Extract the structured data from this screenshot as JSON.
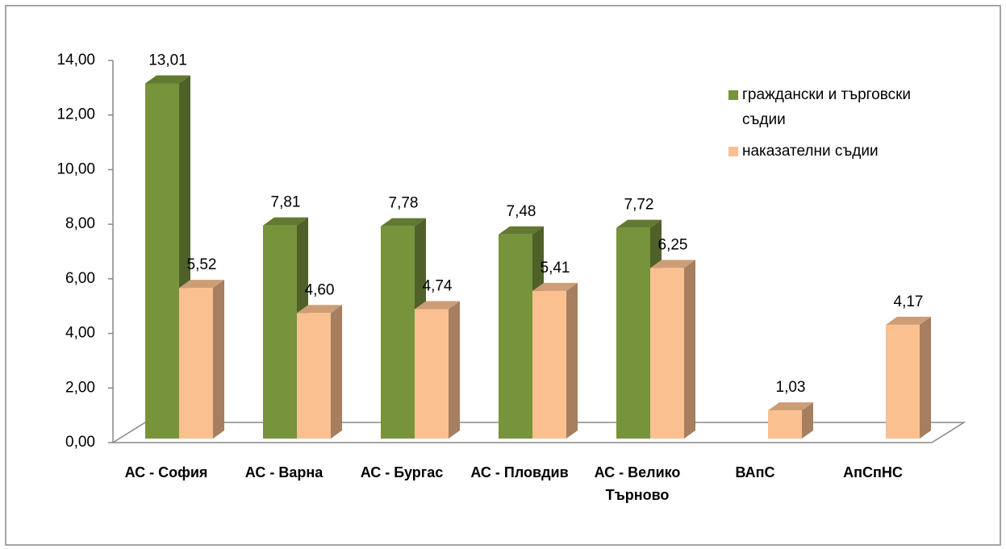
{
  "chart_data": {
    "type": "bar3d",
    "categories": [
      "АС - София",
      "АС - Варна",
      "АС - Бургас",
      "АС - Пловдив",
      "АС - Велико Търново",
      "ВАпС",
      "АпСпНС"
    ],
    "series": [
      {
        "name": "граждански и търговски съдии",
        "color": "#77933c",
        "values": [
          13.01,
          7.81,
          7.78,
          7.48,
          7.72,
          null,
          null
        ],
        "value_labels": [
          "13,01",
          "7,81",
          "7,78",
          "7,48",
          "7,72",
          null,
          null
        ]
      },
      {
        "name": "наказателни съдии",
        "color": "#fac090",
        "values": [
          5.52,
          4.6,
          4.74,
          5.41,
          6.25,
          1.03,
          4.17
        ],
        "value_labels": [
          "5,52",
          "4,60",
          "4,74",
          "5,41",
          "6,25",
          "1,03",
          "4,17"
        ]
      }
    ],
    "ylim": [
      0,
      14
    ],
    "yticks": [
      {
        "value": 0,
        "label": "0,00"
      },
      {
        "value": 2,
        "label": "2,00"
      },
      {
        "value": 4,
        "label": "4,00"
      },
      {
        "value": 6,
        "label": "6,00"
      },
      {
        "value": 8,
        "label": "8,00"
      },
      {
        "value": 10,
        "label": "10,00"
      },
      {
        "value": 12,
        "label": "12,00"
      },
      {
        "value": 14,
        "label": "14,00"
      }
    ],
    "legend": "right"
  }
}
